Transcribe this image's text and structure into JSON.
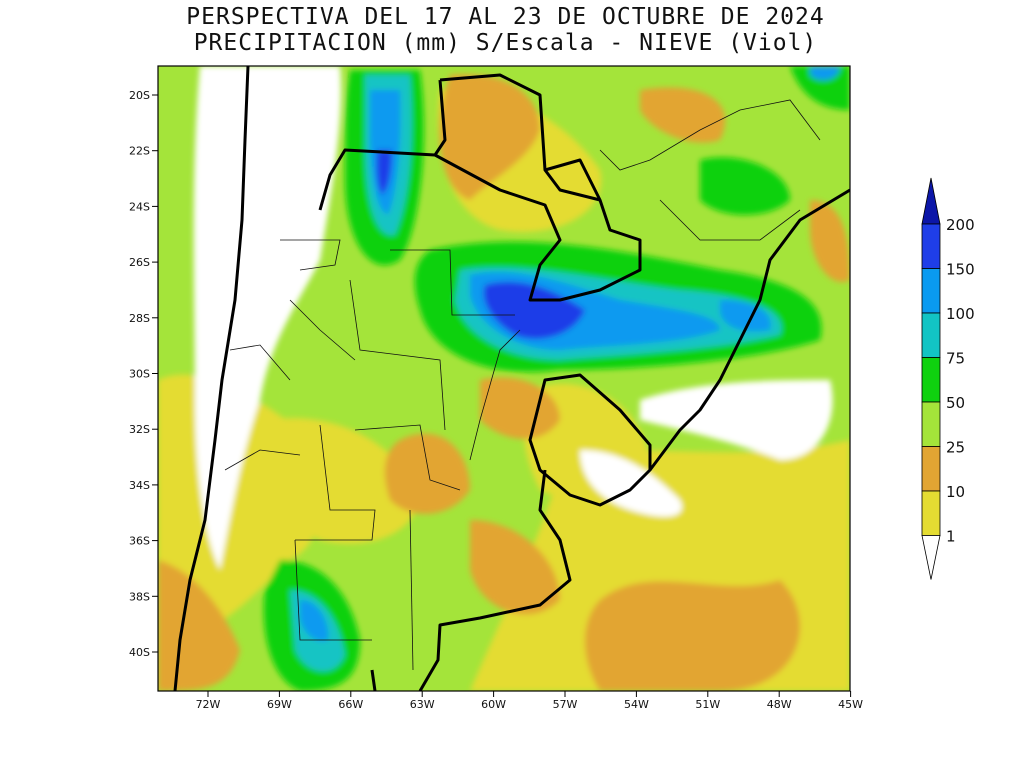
{
  "title_line1": "PERSPECTIVA DEL 17 AL 23 DE OCTUBRE DE 2024",
  "title_line2": "PRECIPITACION (mm) S/Escala - NIEVE (Viol)",
  "lat_labels": [
    "20S",
    "22S",
    "24S",
    "26S",
    "28S",
    "30S",
    "32S",
    "34S",
    "36S",
    "38S",
    "40S"
  ],
  "lon_labels": [
    "72W",
    "69W",
    "66W",
    "63W",
    "60W",
    "57W",
    "54W",
    "51W",
    "48W",
    "45W"
  ],
  "legend": {
    "levels": [
      "200",
      "150",
      "100",
      "75",
      "50",
      "25",
      "10",
      "1"
    ],
    "colors": {
      "over200": "#0c16a8",
      "150_200": "#1f3ee8",
      "100_150": "#0a9af0",
      "75_100": "#12c4c4",
      "50_75": "#0fd10f",
      "25_50": "#a4e43a",
      "10_25": "#e2a533",
      "1_10": "#e4dc32",
      "below1": "#ffffff"
    }
  }
}
